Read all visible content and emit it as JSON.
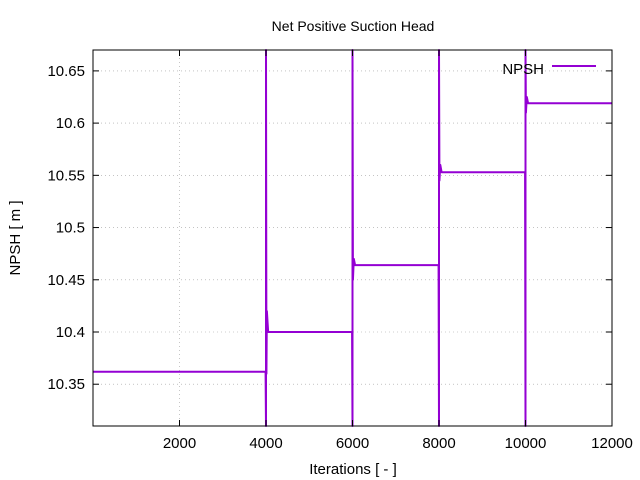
{
  "chart_data": {
    "type": "line",
    "title": "Net Positive Suction Head",
    "xlabel": "Iterations [ - ]",
    "ylabel": "NPSH [ m ]",
    "xlim": [
      0,
      12000
    ],
    "ylim": [
      10.31,
      10.67
    ],
    "xticks": [
      2000,
      4000,
      6000,
      8000,
      10000,
      12000
    ],
    "yticks": [
      10.35,
      10.4,
      10.45,
      10.5,
      10.55,
      10.6,
      10.65
    ],
    "grid": true,
    "legend": "top-right",
    "series": [
      {
        "name": "NPSH",
        "color": "#9400d3",
        "x": [
          0,
          1500,
          3990,
          4000,
          4000,
          4010,
          4020,
          4050,
          5990,
          6000,
          6000,
          6010,
          6030,
          6060,
          7990,
          8000,
          8000,
          8010,
          8030,
          8060,
          9990,
          10000,
          10000,
          10010,
          10030,
          10060,
          12000
        ],
        "y": [
          10.362,
          10.362,
          10.362,
          10.31,
          10.67,
          10.36,
          10.42,
          10.4,
          10.4,
          10.31,
          10.67,
          10.45,
          10.47,
          10.464,
          10.464,
          10.31,
          10.67,
          10.545,
          10.56,
          10.553,
          10.553,
          10.31,
          10.67,
          10.61,
          10.625,
          10.619,
          10.619
        ]
      }
    ]
  }
}
